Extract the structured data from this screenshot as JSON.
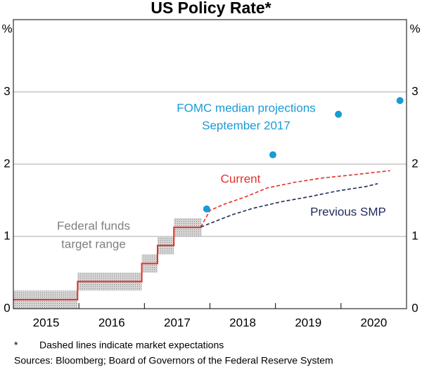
{
  "chart_data": {
    "type": "line",
    "title": "US Policy Rate*",
    "y_unit": "%",
    "y2_unit": "%",
    "xlim": [
      2015,
      2021
    ],
    "ylim": [
      0,
      4
    ],
    "yticks": [
      0,
      1,
      2,
      3
    ],
    "xticks": [
      {
        "value": 2015.5,
        "label": "2015"
      },
      {
        "value": 2016.5,
        "label": "2016"
      },
      {
        "value": 2017.5,
        "label": "2017"
      },
      {
        "value": 2018.5,
        "label": "2018"
      },
      {
        "value": 2019.5,
        "label": "2019"
      },
      {
        "value": 2020.5,
        "label": "2020"
      }
    ],
    "grid": true,
    "target_range": {
      "label": [
        "Federal funds",
        "target range"
      ],
      "color": "#7f7f7f",
      "band_color": "#c0c0c0",
      "line_color": "#e0312b",
      "start": [
        2015,
        2015.98,
        2016.96,
        2017.2,
        2017.45
      ],
      "end": [
        2015.98,
        2016.96,
        2017.2,
        2017.45,
        2017.87
      ],
      "lower": [
        0,
        0.25,
        0.5,
        0.75,
        1.0
      ],
      "upper": [
        0.25,
        0.5,
        0.75,
        1.0,
        1.25
      ]
    },
    "series": [
      {
        "name": "Current",
        "color": "#e0312b",
        "x": [
          2017.86,
          2018.0,
          2018.23,
          2018.55,
          2018.87,
          2019.3,
          2019.73,
          2020.16,
          2020.75
        ],
        "values": [
          1.13,
          1.36,
          1.45,
          1.55,
          1.67,
          1.75,
          1.81,
          1.85,
          1.91
        ]
      },
      {
        "name": "Previous SMP",
        "color": "#1f2a5c",
        "x": [
          2017.86,
          2018.0,
          2018.34,
          2018.66,
          2019.09,
          2019.52,
          2019.95,
          2020.38,
          2020.56
        ],
        "values": [
          1.13,
          1.18,
          1.3,
          1.39,
          1.48,
          1.55,
          1.63,
          1.69,
          1.73
        ]
      }
    ],
    "projections": {
      "label": [
        "FOMC median projections",
        "September 2017"
      ],
      "color": "#1a9ad6",
      "x": [
        2017.95,
        2018.96,
        2019.96,
        2020.9
      ],
      "values": [
        1.38,
        2.13,
        2.69,
        2.88
      ]
    },
    "footnote": {
      "marker": "*",
      "text": "Dashed lines indicate market expectations"
    },
    "sources": "Sources: Bloomberg; Board of Governors of the Federal Reserve System"
  }
}
